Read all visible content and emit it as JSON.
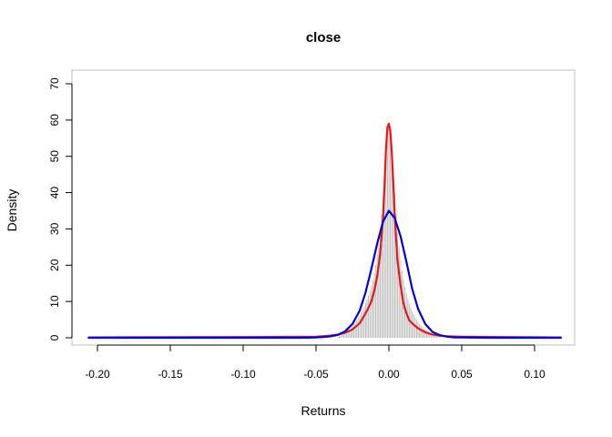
{
  "chart_data": {
    "type": "line",
    "title": "close",
    "xlabel": "Returns",
    "ylabel": "Density",
    "xlim": [
      -0.21,
      0.12
    ],
    "ylim": [
      0,
      70
    ],
    "x_ticks": [
      -0.2,
      -0.15,
      -0.1,
      -0.05,
      0.0,
      0.05,
      0.1
    ],
    "x_tick_labels": [
      "-0.20",
      "-0.15",
      "-0.10",
      "-0.05",
      "0.00",
      "0.05",
      "0.10"
    ],
    "y_ticks": [
      0,
      10,
      20,
      30,
      40,
      50,
      60,
      70
    ],
    "y_tick_labels": [
      "0",
      "10",
      "20",
      "30",
      "40",
      "50",
      "60",
      "70"
    ],
    "grid": false,
    "histogram": {
      "color": "#bebebe",
      "bin_width": 0.001,
      "bins": [
        {
          "x": -0.035,
          "y": 0.4
        },
        {
          "x": -0.034,
          "y": 0.6
        },
        {
          "x": -0.033,
          "y": 0.8
        },
        {
          "x": -0.032,
          "y": 1.0
        },
        {
          "x": -0.031,
          "y": 1.3
        },
        {
          "x": -0.03,
          "y": 1.5
        },
        {
          "x": -0.029,
          "y": 1.8
        },
        {
          "x": -0.028,
          "y": 2.1
        },
        {
          "x": -0.027,
          "y": 2.4
        },
        {
          "x": -0.026,
          "y": 2.8
        },
        {
          "x": -0.025,
          "y": 3.3
        },
        {
          "x": -0.024,
          "y": 3.8
        },
        {
          "x": -0.023,
          "y": 4.3
        },
        {
          "x": -0.022,
          "y": 4.8
        },
        {
          "x": -0.021,
          "y": 5.5
        },
        {
          "x": -0.02,
          "y": 6.3
        },
        {
          "x": -0.019,
          "y": 7.0
        },
        {
          "x": -0.018,
          "y": 7.8
        },
        {
          "x": -0.017,
          "y": 8.7
        },
        {
          "x": -0.016,
          "y": 9.6
        },
        {
          "x": -0.015,
          "y": 10.6
        },
        {
          "x": -0.014,
          "y": 11.8
        },
        {
          "x": -0.013,
          "y": 13.0
        },
        {
          "x": -0.012,
          "y": 14.4
        },
        {
          "x": -0.011,
          "y": 16.0
        },
        {
          "x": -0.01,
          "y": 18.0
        },
        {
          "x": -0.009,
          "y": 20.0
        },
        {
          "x": -0.008,
          "y": 23.0
        },
        {
          "x": -0.007,
          "y": 26.0
        },
        {
          "x": -0.006,
          "y": 30.0
        },
        {
          "x": -0.005,
          "y": 34.0
        },
        {
          "x": -0.004,
          "y": 39.0
        },
        {
          "x": -0.003,
          "y": 45.0
        },
        {
          "x": -0.002,
          "y": 51.0
        },
        {
          "x": -0.001,
          "y": 56.5
        },
        {
          "x": 0.0,
          "y": 59.0
        },
        {
          "x": 0.001,
          "y": 57.0
        },
        {
          "x": 0.002,
          "y": 52.0
        },
        {
          "x": 0.003,
          "y": 46.0
        },
        {
          "x": 0.004,
          "y": 40.0
        },
        {
          "x": 0.005,
          "y": 34.0
        },
        {
          "x": 0.006,
          "y": 29.0
        },
        {
          "x": 0.007,
          "y": 25.0
        },
        {
          "x": 0.008,
          "y": 21.5
        },
        {
          "x": 0.009,
          "y": 18.5
        },
        {
          "x": 0.01,
          "y": 16.0
        },
        {
          "x": 0.011,
          "y": 14.0
        },
        {
          "x": 0.012,
          "y": 12.2
        },
        {
          "x": 0.013,
          "y": 10.8
        },
        {
          "x": 0.014,
          "y": 9.5
        },
        {
          "x": 0.015,
          "y": 8.4
        },
        {
          "x": 0.016,
          "y": 7.4
        },
        {
          "x": 0.017,
          "y": 6.5
        },
        {
          "x": 0.018,
          "y": 5.7
        },
        {
          "x": 0.019,
          "y": 5.0
        },
        {
          "x": 0.02,
          "y": 4.4
        },
        {
          "x": 0.021,
          "y": 3.9
        },
        {
          "x": 0.022,
          "y": 3.4
        },
        {
          "x": 0.023,
          "y": 3.0
        },
        {
          "x": 0.024,
          "y": 2.6
        },
        {
          "x": 0.025,
          "y": 2.3
        },
        {
          "x": 0.026,
          "y": 2.0
        },
        {
          "x": 0.027,
          "y": 1.7
        },
        {
          "x": 0.028,
          "y": 1.5
        },
        {
          "x": 0.029,
          "y": 1.3
        },
        {
          "x": 0.03,
          "y": 1.1
        },
        {
          "x": 0.031,
          "y": 0.9
        },
        {
          "x": 0.032,
          "y": 0.8
        },
        {
          "x": 0.033,
          "y": 0.6
        },
        {
          "x": 0.034,
          "y": 0.5
        },
        {
          "x": 0.035,
          "y": 0.4
        }
      ]
    },
    "series": [
      {
        "color": "#e31a1c",
        "x": [
          -0.206,
          -0.1,
          -0.05,
          -0.04,
          -0.035,
          -0.03,
          -0.025,
          -0.02,
          -0.017,
          -0.015,
          -0.012,
          -0.01,
          -0.008,
          -0.006,
          -0.004,
          -0.003,
          -0.002,
          -0.001,
          0.0,
          0.001,
          0.002,
          0.003,
          0.004,
          0.005,
          0.006,
          0.008,
          0.01,
          0.012,
          0.014,
          0.017,
          0.02,
          0.025,
          0.03,
          0.035,
          0.04,
          0.05,
          0.08,
          0.118
        ],
        "y": [
          0.1,
          0.2,
          0.3,
          0.6,
          0.9,
          1.4,
          2.3,
          4.0,
          6.0,
          7.5,
          10.0,
          13.0,
          17.0,
          23.0,
          33.0,
          42.0,
          52.0,
          58.0,
          59.0,
          57.0,
          51.0,
          43.0,
          34.0,
          27.0,
          21.0,
          14.5,
          9.5,
          6.8,
          4.8,
          3.6,
          2.6,
          1.5,
          0.9,
          0.6,
          0.4,
          0.3,
          0.2,
          0.1
        ]
      },
      {
        "color": "#0000cd",
        "x": [
          -0.206,
          -0.1,
          -0.06,
          -0.05,
          -0.045,
          -0.04,
          -0.035,
          -0.03,
          -0.025,
          -0.02,
          -0.016,
          -0.012,
          -0.008,
          -0.004,
          0.0,
          0.004,
          0.008,
          0.012,
          0.016,
          0.02,
          0.025,
          0.03,
          0.035,
          0.04,
          0.045,
          0.05,
          0.07,
          0.118
        ],
        "y": [
          0.0,
          0.0,
          0.0,
          0.1,
          0.2,
          0.4,
          0.8,
          1.8,
          3.8,
          7.5,
          12.5,
          19.0,
          26.0,
          32.0,
          35.0,
          33.0,
          28.0,
          21.0,
          13.5,
          8.0,
          3.8,
          1.6,
          0.7,
          0.3,
          0.1,
          0.1,
          0.0,
          0.0
        ]
      }
    ]
  }
}
